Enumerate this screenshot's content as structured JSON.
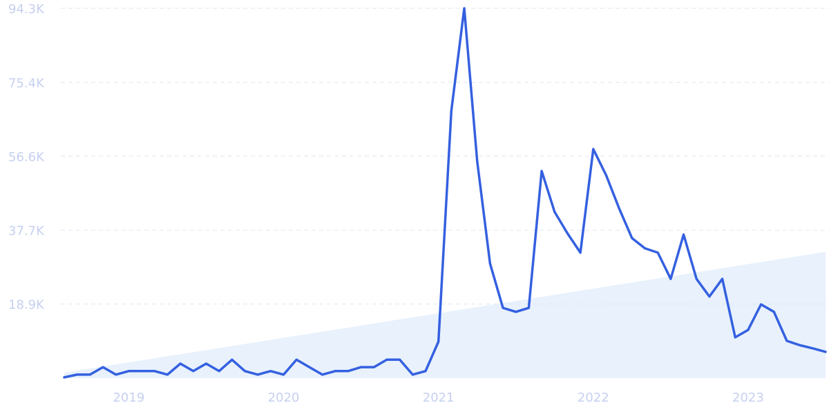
{
  "chart_data": {
    "type": "line",
    "categories": [
      null,
      null,
      null,
      null,
      null,
      "2019",
      null,
      null,
      null,
      null,
      null,
      null,
      null,
      null,
      null,
      null,
      null,
      "2020",
      null,
      null,
      null,
      null,
      null,
      null,
      null,
      null,
      null,
      null,
      null,
      "2021",
      null,
      null,
      null,
      null,
      null,
      null,
      null,
      null,
      null,
      null,
      null,
      "2022",
      null,
      null,
      null,
      null,
      null,
      null,
      null,
      null,
      null,
      null,
      null,
      "2023",
      null,
      null,
      null,
      null,
      null,
      null
    ],
    "series": [
      {
        "color": "#3460e0",
        "values": [
          200,
          900,
          900,
          2800,
          900,
          1800,
          1800,
          1800,
          900,
          3700,
          1800,
          3700,
          1800,
          4700,
          1800,
          900,
          1800,
          900,
          4700,
          2800,
          900,
          1800,
          1800,
          2800,
          2800,
          4700,
          4700,
          900,
          1800,
          9300,
          68200,
          94300,
          55400,
          29200,
          17900,
          16900,
          17900,
          52800,
          42400,
          36900,
          32000,
          58400,
          51700,
          43300,
          35700,
          33100,
          32000,
          25300,
          36600,
          25300,
          20800,
          25300,
          10400,
          12300,
          18800,
          16900,
          9500,
          8400,
          7600,
          6700
        ]
      }
    ],
    "trend": {
      "color": "#dce9fb",
      "values": [
        1400,
        32200
      ]
    },
    "ylim": [
      0,
      94300
    ],
    "yticks": [
      {
        "value": 18900,
        "label": "18.9K"
      },
      {
        "value": 37700,
        "label": "37.7K"
      },
      {
        "value": 56600,
        "label": "56.6K"
      },
      {
        "value": 75400,
        "label": "75.4K"
      },
      {
        "value": 94300,
        "label": "94.3K"
      }
    ],
    "grid": true
  }
}
